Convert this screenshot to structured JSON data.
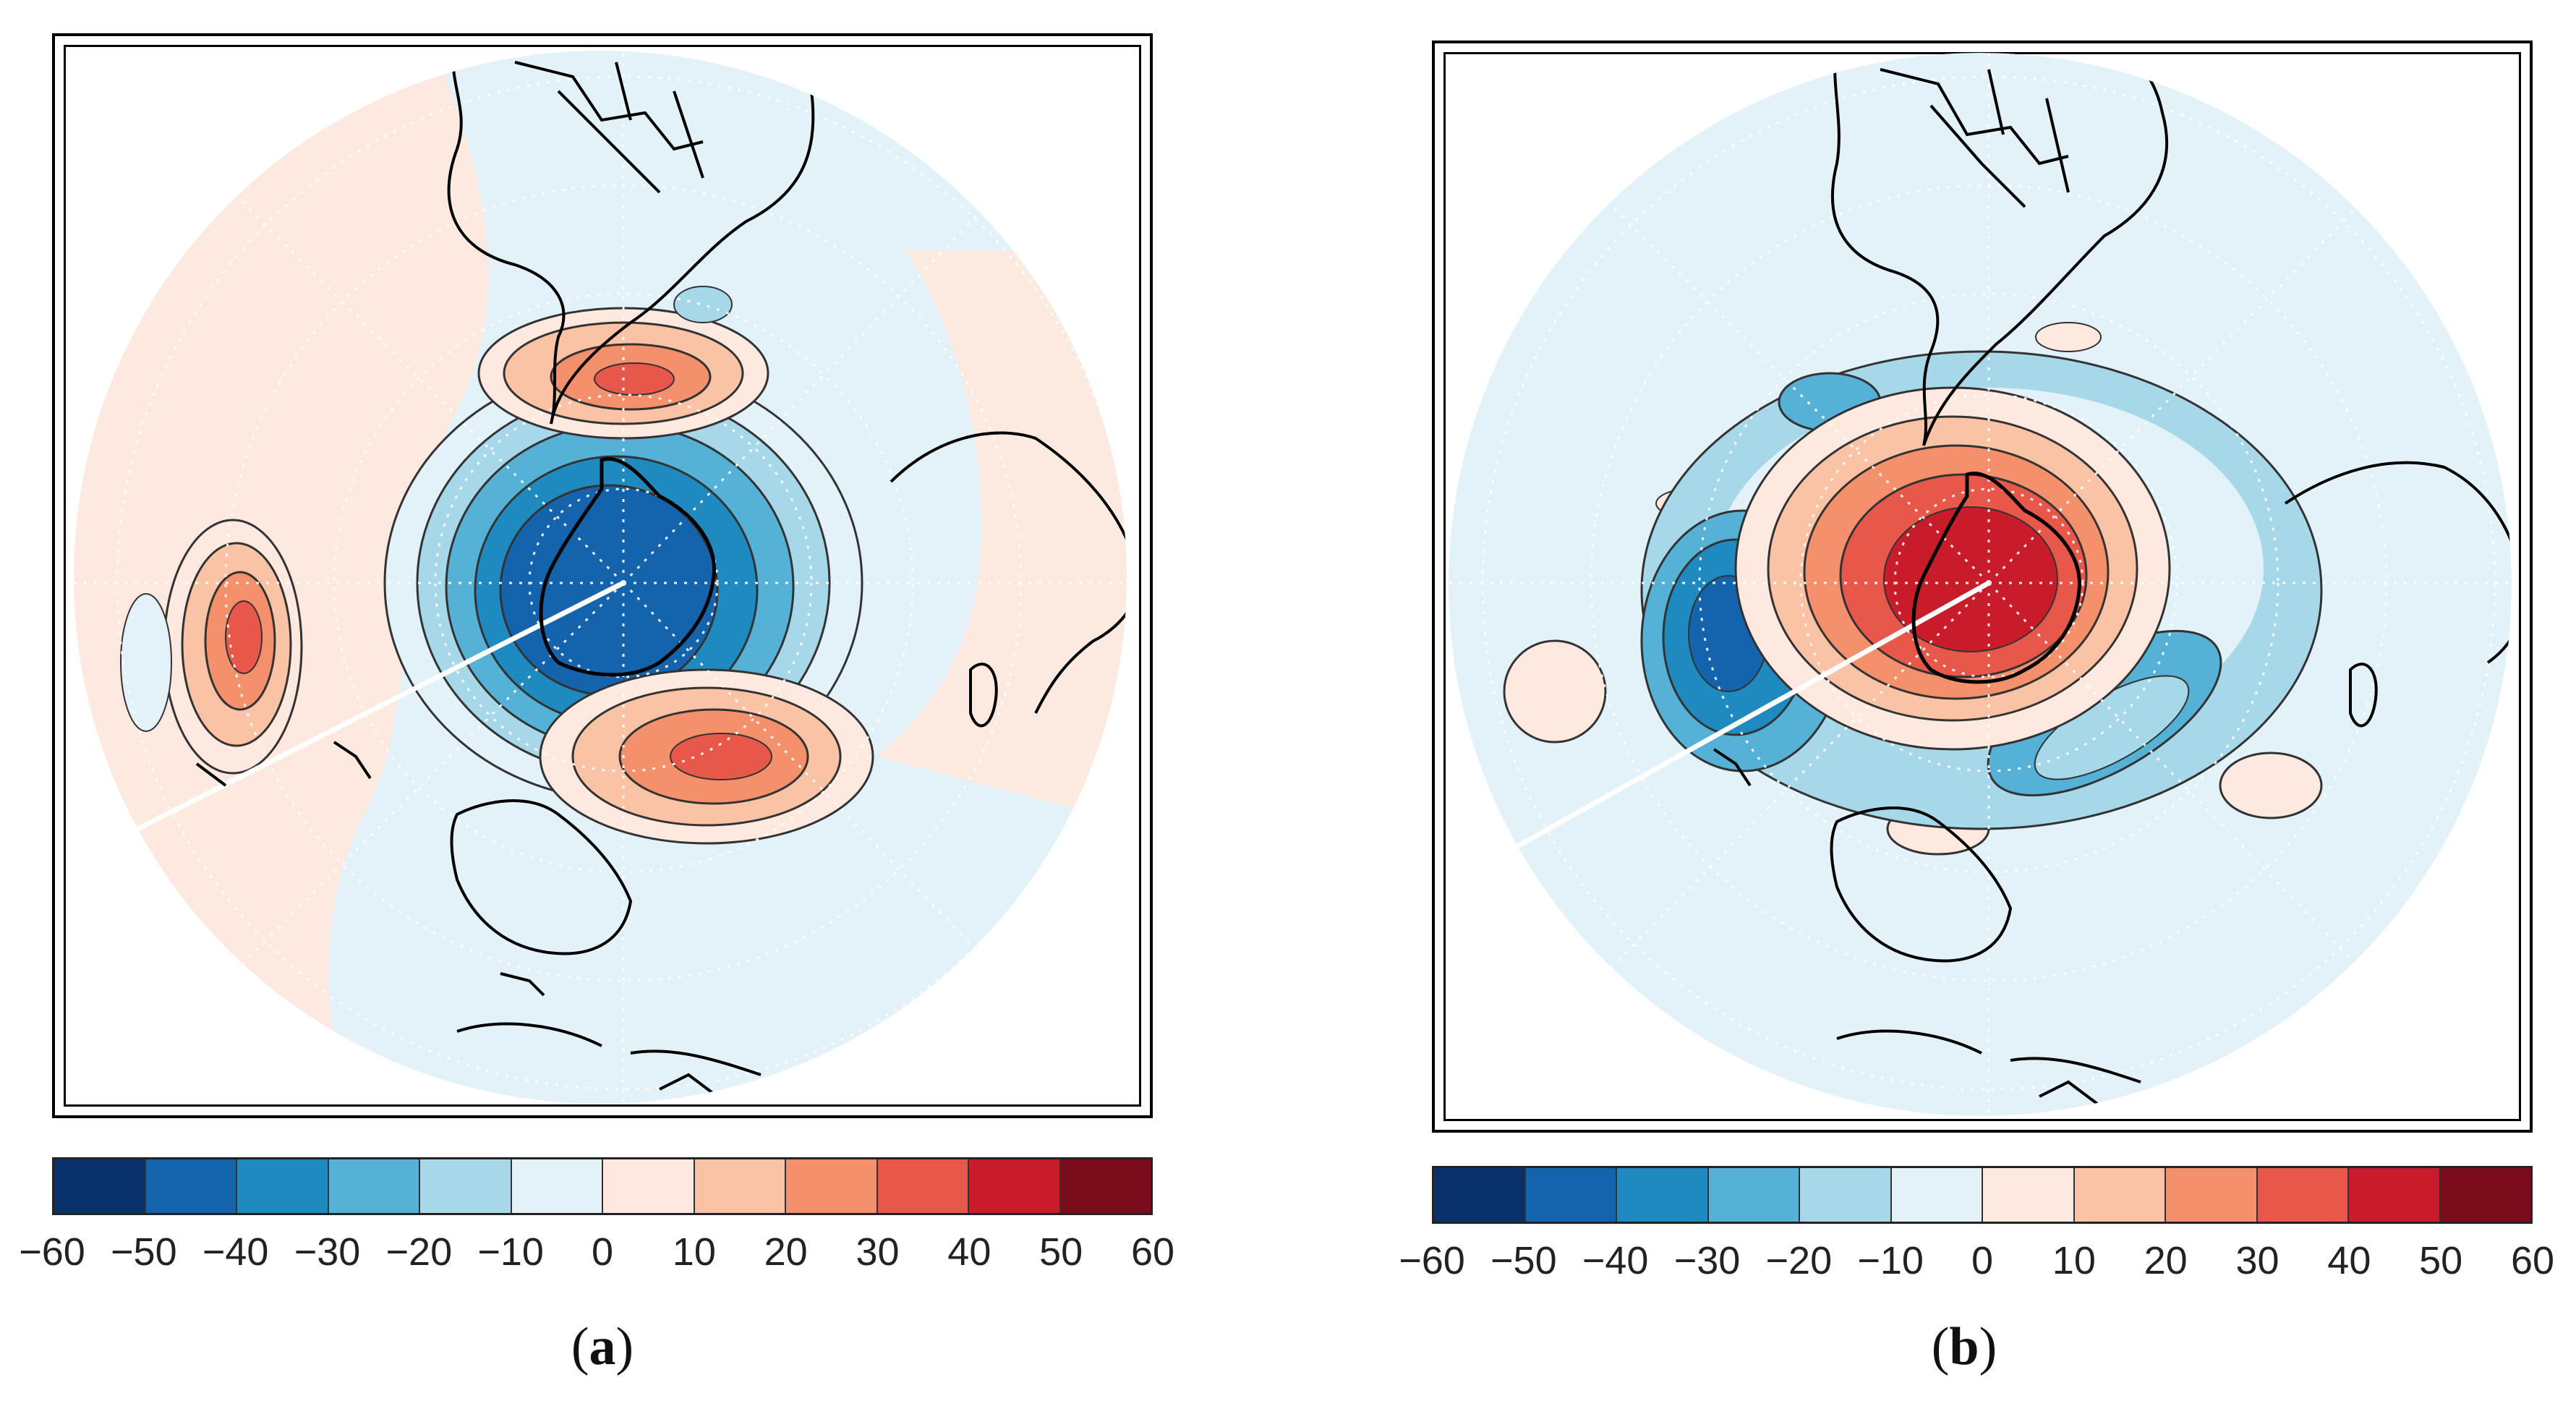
{
  "colorbar": {
    "colors": [
      "#08306b",
      "#1464ad",
      "#1f8ac0",
      "#56b1d6",
      "#a6d8ea",
      "#e3f1f8",
      "#fde9df",
      "#fbc3a5",
      "#f5906c",
      "#e8584a",
      "#c81c2b",
      "#7b0c1c"
    ],
    "ticks": [
      "−60",
      "−50",
      "−40",
      "−30",
      "−20",
      "−10",
      "0",
      "10",
      "20",
      "30",
      "40",
      "50",
      "60"
    ]
  },
  "panels": [
    {
      "id": "a",
      "label": "a",
      "pattern": "positive-dipole"
    },
    {
      "id": "b",
      "label": "b",
      "pattern": "positive-center"
    }
  ],
  "colors": {
    "ocean_positive": "#fde9df",
    "ocean_negative": "#e3f1f8",
    "coast": "#000000",
    "grid": "#ffffff"
  }
}
